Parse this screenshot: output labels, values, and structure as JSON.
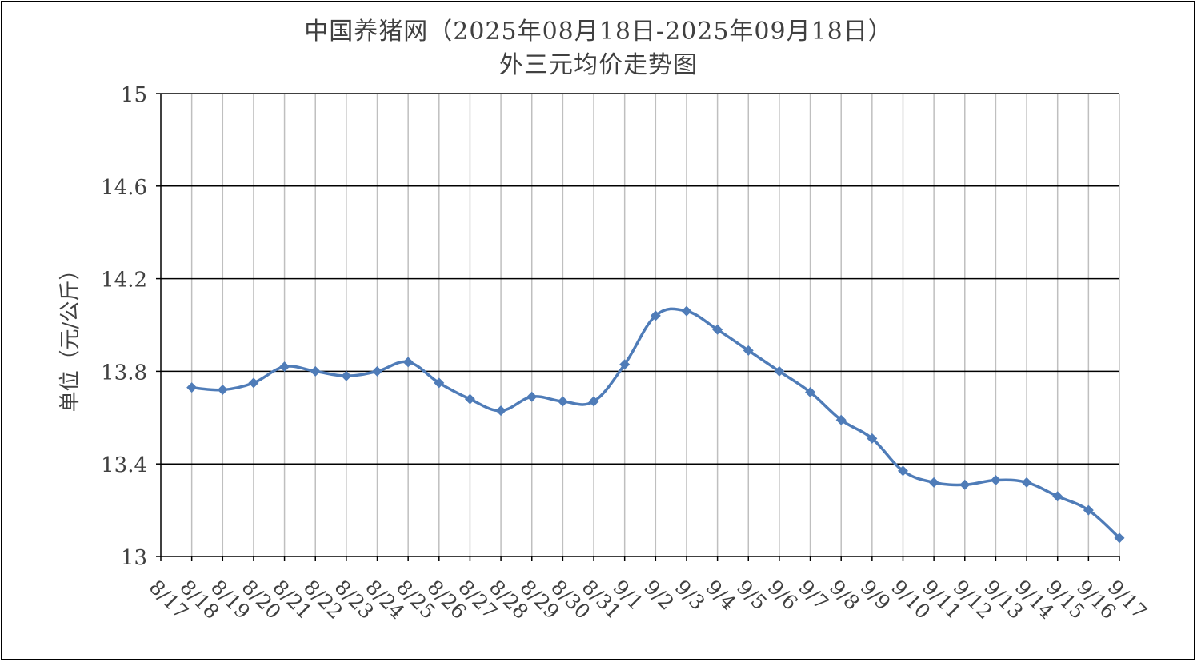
{
  "chart_data": {
    "type": "line",
    "title": "中国养猪网（2025年08月18日-2025年09月18日）",
    "subtitle": "外三元均价走势图",
    "ylabel": "单位（元/公斤）",
    "xlabel": "",
    "ylim": [
      13,
      15
    ],
    "yticks": [
      13,
      13.4,
      13.8,
      14.2,
      14.6,
      15
    ],
    "ytick_labels": [
      "13",
      "13.4",
      "13.8",
      "14.2",
      "14.6",
      "15"
    ],
    "categories": [
      "8/17",
      "8/18",
      "8/19",
      "8/20",
      "8/21",
      "8/22",
      "8/23",
      "8/24",
      "8/25",
      "8/26",
      "8/27",
      "8/28",
      "8/29",
      "8/30",
      "8/31",
      "9/1",
      "9/2",
      "9/3",
      "9/4",
      "9/5",
      "9/6",
      "9/7",
      "9/8",
      "9/9",
      "9/10",
      "9/11",
      "9/12",
      "9/13",
      "9/14",
      "9/15",
      "9/16",
      "9/17"
    ],
    "series": [
      {
        "color": "#4f7cb8",
        "marker": "diamond",
        "smooth": true,
        "x": [
          "8/18",
          "8/19",
          "8/20",
          "8/21",
          "8/22",
          "8/23",
          "8/24",
          "8/25",
          "8/26",
          "8/27",
          "8/28",
          "8/29",
          "8/30",
          "8/31",
          "9/1",
          "9/2",
          "9/3",
          "9/4",
          "9/5",
          "9/6",
          "9/7",
          "9/8",
          "9/9",
          "9/10",
          "9/11",
          "9/12",
          "9/13",
          "9/14",
          "9/15",
          "9/16",
          "9/17"
        ],
        "values": [
          13.73,
          13.72,
          13.75,
          13.82,
          13.8,
          13.78,
          13.8,
          13.84,
          13.75,
          13.68,
          13.63,
          13.69,
          13.67,
          13.67,
          13.83,
          14.04,
          14.06,
          13.98,
          13.89,
          13.8,
          13.71,
          13.59,
          13.51,
          13.37,
          13.32,
          13.31,
          13.33,
          13.32,
          13.26,
          13.2,
          13.08
        ]
      }
    ],
    "grid": {
      "horizontal": true,
      "vertical": true
    }
  }
}
